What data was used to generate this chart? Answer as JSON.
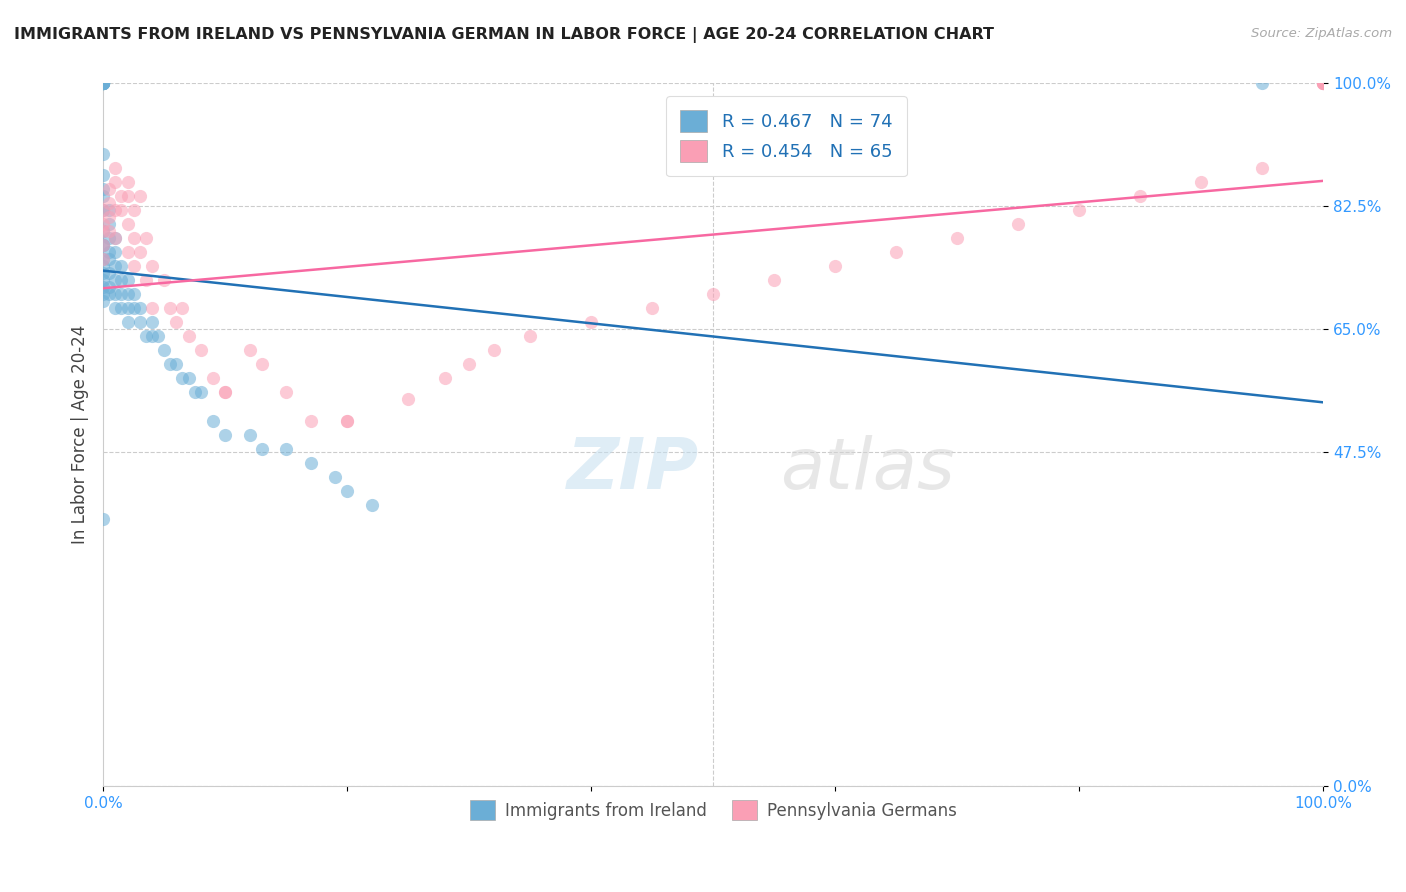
{
  "title": "IMMIGRANTS FROM IRELAND VS PENNSYLVANIA GERMAN IN LABOR FORCE | AGE 20-24 CORRELATION CHART",
  "source": "Source: ZipAtlas.com",
  "ylabel": "In Labor Force | Age 20-24",
  "legend_labels": [
    "Immigrants from Ireland",
    "Pennsylvania Germans"
  ],
  "legend_r": [
    0.467,
    0.454
  ],
  "legend_n": [
    74,
    65
  ],
  "blue_color": "#6baed6",
  "pink_color": "#fa9fb5",
  "blue_line_color": "#2171b5",
  "pink_line_color": "#f768a1",
  "axis_label_color": "#3399ff",
  "background_color": "#ffffff",
  "ytick_labels": [
    "0.0%",
    "47.5%",
    "65.0%",
    "82.5%",
    "100.0%"
  ],
  "ytick_values": [
    0.0,
    0.475,
    0.65,
    0.825,
    1.0
  ],
  "grid_color": "#cccccc",
  "ireland_x": [
    0.0,
    0.0,
    0.0,
    0.0,
    0.0,
    0.0,
    0.0,
    0.0,
    0.0,
    0.0,
    0.0,
    0.0,
    0.0,
    0.0,
    0.0,
    0.0,
    0.0,
    0.0,
    0.0,
    0.0,
    0.0,
    0.0,
    0.0,
    0.0,
    0.0,
    0.0,
    0.005,
    0.005,
    0.005,
    0.005,
    0.005,
    0.005,
    0.005,
    0.005,
    0.01,
    0.01,
    0.01,
    0.01,
    0.01,
    0.01,
    0.015,
    0.015,
    0.015,
    0.015,
    0.02,
    0.02,
    0.02,
    0.02,
    0.025,
    0.025,
    0.03,
    0.03,
    0.035,
    0.04,
    0.04,
    0.045,
    0.05,
    0.055,
    0.06,
    0.065,
    0.07,
    0.075,
    0.08,
    0.09,
    0.1,
    0.12,
    0.13,
    0.15,
    0.17,
    0.19,
    0.2,
    0.22,
    0.95,
    0.0
  ],
  "ireland_y": [
    1.0,
    1.0,
    1.0,
    1.0,
    1.0,
    1.0,
    1.0,
    1.0,
    1.0,
    1.0,
    1.0,
    0.9,
    0.87,
    0.85,
    0.84,
    0.82,
    0.79,
    0.77,
    0.77,
    0.75,
    0.74,
    0.73,
    0.72,
    0.71,
    0.7,
    0.69,
    0.82,
    0.8,
    0.78,
    0.76,
    0.75,
    0.73,
    0.71,
    0.7,
    0.78,
    0.76,
    0.74,
    0.72,
    0.7,
    0.68,
    0.74,
    0.72,
    0.7,
    0.68,
    0.72,
    0.7,
    0.68,
    0.66,
    0.7,
    0.68,
    0.68,
    0.66,
    0.64,
    0.66,
    0.64,
    0.64,
    0.62,
    0.6,
    0.6,
    0.58,
    0.58,
    0.56,
    0.56,
    0.52,
    0.5,
    0.5,
    0.48,
    0.48,
    0.46,
    0.44,
    0.42,
    0.4,
    1.0,
    0.38
  ],
  "penn_x": [
    0.0,
    0.0,
    0.0,
    0.0,
    0.0,
    0.005,
    0.005,
    0.005,
    0.005,
    0.01,
    0.01,
    0.01,
    0.01,
    0.015,
    0.015,
    0.02,
    0.02,
    0.02,
    0.02,
    0.025,
    0.025,
    0.025,
    0.03,
    0.03,
    0.035,
    0.035,
    0.04,
    0.04,
    0.05,
    0.055,
    0.06,
    0.065,
    0.07,
    0.08,
    0.09,
    0.1,
    0.12,
    0.13,
    0.15,
    0.17,
    0.2,
    0.25,
    0.28,
    0.3,
    0.32,
    0.35,
    0.4,
    0.45,
    0.5,
    0.55,
    0.6,
    0.65,
    0.7,
    0.75,
    0.8,
    0.85,
    0.9,
    0.95,
    1.0,
    1.0,
    1.0,
    1.0,
    1.0,
    0.1,
    0.2
  ],
  "penn_y": [
    0.82,
    0.8,
    0.79,
    0.77,
    0.75,
    0.85,
    0.83,
    0.81,
    0.79,
    0.88,
    0.86,
    0.82,
    0.78,
    0.84,
    0.82,
    0.86,
    0.84,
    0.8,
    0.76,
    0.82,
    0.78,
    0.74,
    0.84,
    0.76,
    0.78,
    0.72,
    0.74,
    0.68,
    0.72,
    0.68,
    0.66,
    0.68,
    0.64,
    0.62,
    0.58,
    0.56,
    0.62,
    0.6,
    0.56,
    0.52,
    0.52,
    0.55,
    0.58,
    0.6,
    0.62,
    0.64,
    0.66,
    0.68,
    0.7,
    0.72,
    0.74,
    0.76,
    0.78,
    0.8,
    0.82,
    0.84,
    0.86,
    0.88,
    1.0,
    1.0,
    1.0,
    1.0,
    1.0,
    0.56,
    0.52
  ]
}
